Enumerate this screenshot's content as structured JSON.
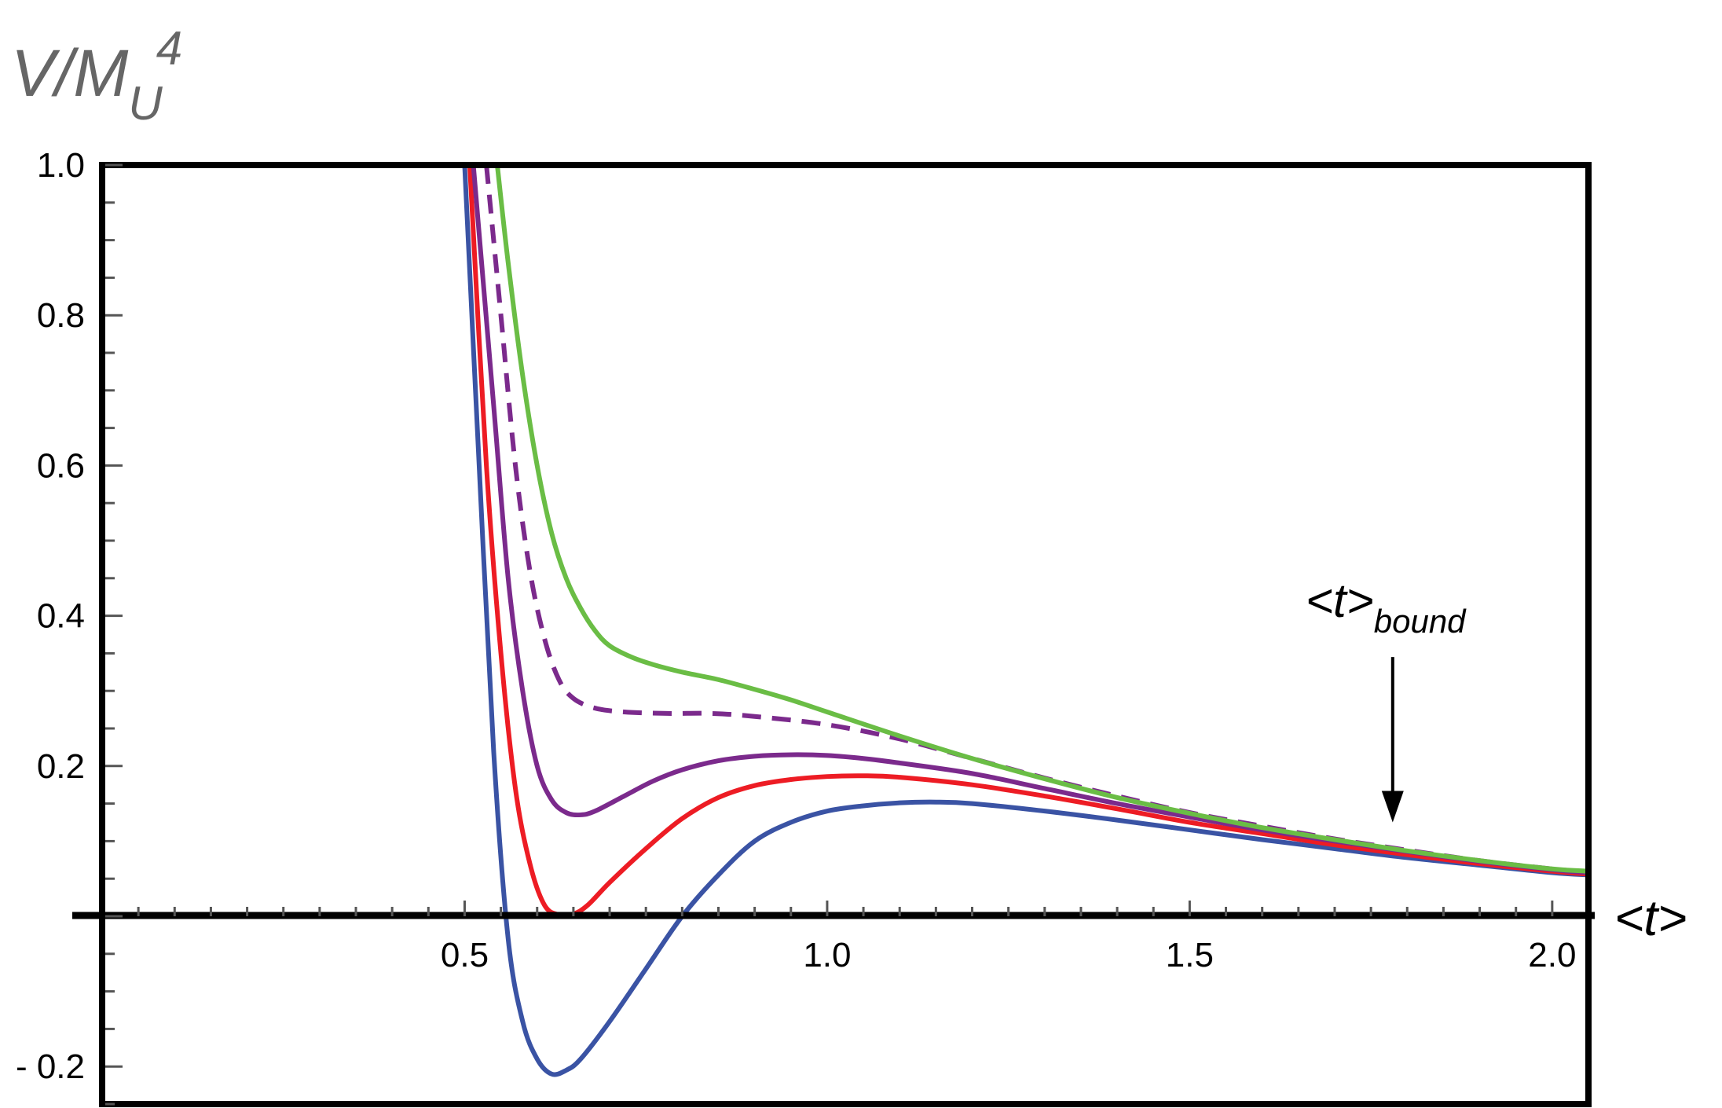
{
  "chart_data": {
    "type": "line",
    "title": "",
    "ylabel": {
      "base": "V/M",
      "sub": "U",
      "sup": "4"
    },
    "xlabel": "<t>",
    "xlim": [
      0.0,
      2.05
    ],
    "ylim": [
      -0.25,
      1.0
    ],
    "x_ticks": [
      {
        "value": 0.5,
        "label": "0.5"
      },
      {
        "value": 1.0,
        "label": "1.0"
      },
      {
        "value": 1.5,
        "label": "1.5"
      },
      {
        "value": 2.0,
        "label": "2.0"
      }
    ],
    "y_ticks": [
      {
        "value": 1.0,
        "label": "1.0"
      },
      {
        "value": 0.8,
        "label": "0.8"
      },
      {
        "value": 0.6,
        "label": "0.6"
      },
      {
        "value": 0.4,
        "label": "0.4"
      },
      {
        "value": 0.2,
        "label": "0.2"
      },
      {
        "value": -0.2,
        "label": "- 0.2"
      }
    ],
    "grid": false,
    "annotation": {
      "text": "<t>",
      "sub": "bound",
      "x": 1.78,
      "y_top": 0.345,
      "y_bottom": 0.125
    },
    "series": [
      {
        "color": "#3a53a4",
        "dashed": false,
        "points": [
          [
            0.5,
            1.0
          ],
          [
            0.52,
            0.6
          ],
          [
            0.54,
            0.22
          ],
          [
            0.56,
            -0.03
          ],
          [
            0.58,
            -0.14
          ],
          [
            0.6,
            -0.19
          ],
          [
            0.62,
            -0.21
          ],
          [
            0.64,
            -0.205
          ],
          [
            0.66,
            -0.19
          ],
          [
            0.7,
            -0.14
          ],
          [
            0.75,
            -0.07
          ],
          [
            0.8,
            0.0
          ],
          [
            0.85,
            0.055
          ],
          [
            0.9,
            0.1
          ],
          [
            0.95,
            0.125
          ],
          [
            1.0,
            0.14
          ],
          [
            1.05,
            0.147
          ],
          [
            1.1,
            0.151
          ],
          [
            1.15,
            0.152
          ],
          [
            1.2,
            0.15
          ],
          [
            1.3,
            0.14
          ],
          [
            1.4,
            0.128
          ],
          [
            1.5,
            0.115
          ],
          [
            1.6,
            0.102
          ],
          [
            1.7,
            0.09
          ],
          [
            1.8,
            0.078
          ],
          [
            1.9,
            0.068
          ],
          [
            2.0,
            0.058
          ],
          [
            2.05,
            0.055
          ]
        ]
      },
      {
        "color": "#ed1c24",
        "dashed": false,
        "points": [
          [
            0.507,
            1.0
          ],
          [
            0.53,
            0.6
          ],
          [
            0.55,
            0.35
          ],
          [
            0.57,
            0.17
          ],
          [
            0.59,
            0.07
          ],
          [
            0.61,
            0.015
          ],
          [
            0.63,
            0.002
          ],
          [
            0.65,
            0.003
          ],
          [
            0.67,
            0.015
          ],
          [
            0.7,
            0.045
          ],
          [
            0.75,
            0.09
          ],
          [
            0.8,
            0.13
          ],
          [
            0.85,
            0.158
          ],
          [
            0.9,
            0.174
          ],
          [
            0.95,
            0.182
          ],
          [
            1.0,
            0.186
          ],
          [
            1.05,
            0.187
          ],
          [
            1.1,
            0.185
          ],
          [
            1.2,
            0.175
          ],
          [
            1.3,
            0.16
          ],
          [
            1.4,
            0.143
          ],
          [
            1.5,
            0.125
          ],
          [
            1.6,
            0.11
          ],
          [
            1.7,
            0.095
          ],
          [
            1.8,
            0.082
          ],
          [
            1.9,
            0.07
          ],
          [
            2.0,
            0.06
          ],
          [
            2.05,
            0.056
          ]
        ]
      },
      {
        "color": "#7b2a8c",
        "dashed": false,
        "points": [
          [
            0.512,
            1.0
          ],
          [
            0.54,
            0.68
          ],
          [
            0.56,
            0.45
          ],
          [
            0.58,
            0.3
          ],
          [
            0.6,
            0.2
          ],
          [
            0.62,
            0.155
          ],
          [
            0.64,
            0.138
          ],
          [
            0.66,
            0.135
          ],
          [
            0.68,
            0.14
          ],
          [
            0.72,
            0.16
          ],
          [
            0.76,
            0.18
          ],
          [
            0.8,
            0.195
          ],
          [
            0.85,
            0.207
          ],
          [
            0.9,
            0.213
          ],
          [
            0.95,
            0.215
          ],
          [
            1.0,
            0.214
          ],
          [
            1.05,
            0.21
          ],
          [
            1.1,
            0.204
          ],
          [
            1.2,
            0.19
          ],
          [
            1.3,
            0.17
          ],
          [
            1.4,
            0.15
          ],
          [
            1.5,
            0.132
          ],
          [
            1.6,
            0.115
          ],
          [
            1.7,
            0.1
          ],
          [
            1.8,
            0.086
          ],
          [
            1.9,
            0.073
          ],
          [
            2.0,
            0.062
          ],
          [
            2.05,
            0.058
          ]
        ]
      },
      {
        "color": "#7b2a8c",
        "dashed": true,
        "points": [
          [
            0.53,
            1.0
          ],
          [
            0.55,
            0.8
          ],
          [
            0.57,
            0.6
          ],
          [
            0.59,
            0.46
          ],
          [
            0.61,
            0.37
          ],
          [
            0.63,
            0.315
          ],
          [
            0.65,
            0.29
          ],
          [
            0.68,
            0.277
          ],
          [
            0.72,
            0.272
          ],
          [
            0.78,
            0.27
          ],
          [
            0.84,
            0.27
          ],
          [
            0.9,
            0.266
          ],
          [
            1.0,
            0.255
          ],
          [
            1.1,
            0.236
          ],
          [
            1.2,
            0.21
          ],
          [
            1.3,
            0.184
          ],
          [
            1.4,
            0.16
          ],
          [
            1.5,
            0.138
          ],
          [
            1.6,
            0.12
          ],
          [
            1.7,
            0.103
          ],
          [
            1.8,
            0.088
          ],
          [
            1.9,
            0.074
          ],
          [
            2.0,
            0.063
          ],
          [
            2.05,
            0.059
          ]
        ]
      },
      {
        "color": "#6abd45",
        "dashed": false,
        "points": [
          [
            0.545,
            1.0
          ],
          [
            0.56,
            0.87
          ],
          [
            0.58,
            0.72
          ],
          [
            0.6,
            0.6
          ],
          [
            0.62,
            0.51
          ],
          [
            0.64,
            0.45
          ],
          [
            0.66,
            0.41
          ],
          [
            0.68,
            0.38
          ],
          [
            0.7,
            0.36
          ],
          [
            0.73,
            0.345
          ],
          [
            0.76,
            0.335
          ],
          [
            0.8,
            0.325
          ],
          [
            0.85,
            0.315
          ],
          [
            0.9,
            0.302
          ],
          [
            0.95,
            0.288
          ],
          [
            1.0,
            0.272
          ],
          [
            1.1,
            0.24
          ],
          [
            1.2,
            0.21
          ],
          [
            1.3,
            0.183
          ],
          [
            1.4,
            0.158
          ],
          [
            1.5,
            0.137
          ],
          [
            1.6,
            0.118
          ],
          [
            1.7,
            0.102
          ],
          [
            1.8,
            0.087
          ],
          [
            1.9,
            0.074
          ],
          [
            2.0,
            0.063
          ],
          [
            2.05,
            0.06
          ]
        ]
      }
    ]
  }
}
